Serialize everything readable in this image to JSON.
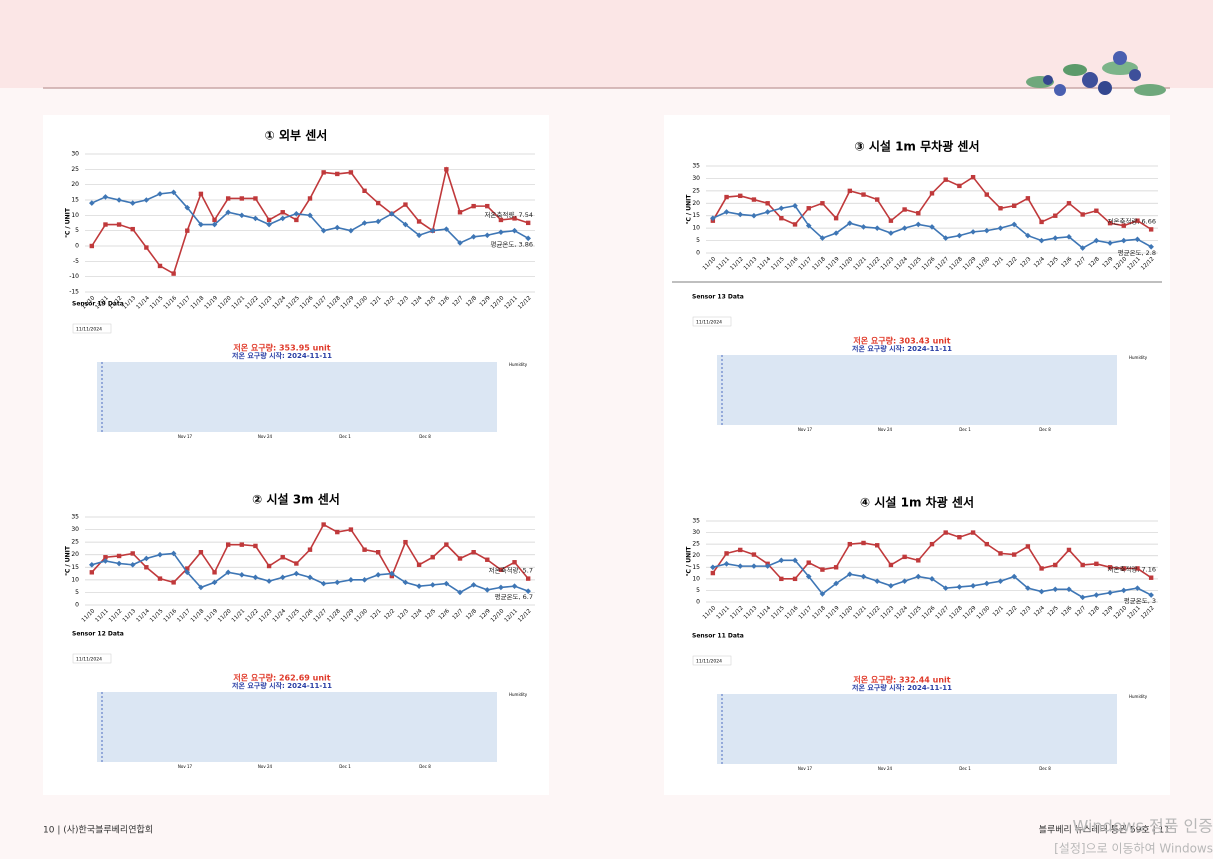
{
  "chart_data": [
    {
      "type": "line",
      "title": "① 외부 센서",
      "ylabel": "℃ / UNIT",
      "categories": [
        "11/10",
        "11/11",
        "11/12",
        "11/13",
        "11/14",
        "11/15",
        "11/16",
        "11/17",
        "11/18",
        "11/19",
        "11/20",
        "11/21",
        "11/22",
        "11/23",
        "11/24",
        "11/25",
        "11/26",
        "11/27",
        "11/28",
        "11/29",
        "11/30",
        "12/1",
        "12/2",
        "12/3",
        "12/4",
        "12/5",
        "12/6",
        "12/7",
        "12/8",
        "12/9",
        "12/10",
        "12/11",
        "12/12"
      ],
      "series": [
        {
          "color": "#c0393b",
          "marker": "square",
          "values": [
            0,
            7,
            7,
            5.5,
            -0.5,
            -6.5,
            -9,
            5,
            17,
            8.5,
            15.5,
            15.5,
            15.5,
            8.5,
            11,
            8.5,
            15.5,
            24,
            23.5,
            24,
            18,
            14,
            10.5,
            13.5,
            8,
            5,
            25,
            11,
            13,
            13,
            8.5,
            9,
            7.54
          ]
        },
        {
          "color": "#3e76b5",
          "marker": "diamond",
          "values": [
            14,
            16,
            15,
            14,
            15,
            17,
            17.5,
            12.5,
            7,
            7,
            11,
            10,
            9,
            7,
            9,
            10.5,
            10,
            5,
            6,
            5,
            7.5,
            8,
            10.5,
            7,
            3.5,
            5,
            5.5,
            1,
            3,
            3.5,
            4.5,
            5,
            2.5
          ]
        }
      ],
      "annotations": [
        "저온축적량, 7.54",
        "평균온도, 3.86"
      ],
      "ylim": [
        -15,
        30
      ],
      "yticks": [
        -15,
        -10,
        -5,
        0,
        5,
        10,
        15,
        20,
        25,
        30
      ],
      "grid": true
    },
    {
      "type": "line",
      "title": "② 시설 3m 센서",
      "ylabel": "℃ / UNIT",
      "categories": [
        "11/10",
        "11/11",
        "11/12",
        "11/13",
        "11/14",
        "11/15",
        "11/16",
        "11/17",
        "11/18",
        "11/19",
        "11/20",
        "11/21",
        "11/22",
        "11/23",
        "11/24",
        "11/25",
        "11/26",
        "11/27",
        "11/28",
        "11/29",
        "11/30",
        "12/1",
        "12/2",
        "12/3",
        "12/4",
        "12/5",
        "12/6",
        "12/7",
        "12/8",
        "12/9",
        "12/10",
        "12/11",
        "12/12"
      ],
      "series": [
        {
          "color": "#c0393b",
          "marker": "square",
          "values": [
            13,
            19,
            19.5,
            20.5,
            15,
            10.5,
            9,
            14.5,
            21,
            13,
            24,
            24,
            23.5,
            15.5,
            19,
            16.5,
            22,
            32,
            29,
            30,
            22,
            21,
            11.5,
            25,
            16,
            19,
            24,
            18.5,
            21,
            18,
            14,
            17,
            10.5
          ]
        },
        {
          "color": "#3e76b5",
          "marker": "diamond",
          "values": [
            16,
            17.5,
            16.5,
            16,
            18.5,
            20,
            20.5,
            13,
            7,
            9,
            13,
            12,
            11,
            9.5,
            11,
            12.5,
            11,
            8.5,
            9,
            10,
            10,
            12,
            12.5,
            9,
            7.5,
            8,
            8.5,
            5,
            8,
            6,
            7,
            7.5,
            5.5
          ]
        }
      ],
      "annotations": [
        "저온축적량, 5.7",
        "평균온도, 6.7"
      ],
      "ylim": [
        0,
        35
      ],
      "yticks": [
        0,
        5,
        10,
        15,
        20,
        25,
        30,
        35
      ],
      "grid": true
    },
    {
      "type": "line",
      "title": "③ 시설 1m 무차광 센서",
      "ylabel": "℃ / UNIT",
      "categories": [
        "11/10",
        "11/11",
        "11/12",
        "11/13",
        "11/14",
        "11/15",
        "11/16",
        "11/17",
        "11/18",
        "11/19",
        "11/20",
        "11/21",
        "11/22",
        "11/23",
        "11/24",
        "11/25",
        "11/26",
        "11/27",
        "11/28",
        "11/29",
        "11/30",
        "12/1",
        "12/2",
        "12/3",
        "12/4",
        "12/5",
        "12/6",
        "12/7",
        "12/8",
        "12/9",
        "12/10",
        "12/11",
        "12/12"
      ],
      "series": [
        {
          "color": "#c0393b",
          "marker": "square",
          "values": [
            13,
            22.5,
            23,
            21.5,
            20,
            14,
            11.5,
            18,
            20,
            14,
            25,
            23.5,
            21.5,
            13,
            17.5,
            16,
            24,
            29.5,
            27,
            30.5,
            23.5,
            18,
            19,
            22,
            12.5,
            15,
            20,
            15.5,
            17,
            12,
            11,
            13,
            9.5
          ]
        },
        {
          "color": "#3e76b5",
          "marker": "diamond",
          "values": [
            14,
            16.5,
            15.5,
            15,
            16.5,
            18,
            19,
            11,
            6,
            8,
            12,
            10.5,
            10,
            8,
            10,
            11.5,
            10.5,
            6,
            7,
            8.5,
            9,
            10,
            11.5,
            7,
            5,
            6,
            6.5,
            2,
            5,
            4,
            5,
            5.5,
            2.5
          ]
        }
      ],
      "annotations": [
        "저온축적량, 6.66",
        "평균온도, 2.8"
      ],
      "ylim": [
        0,
        35
      ],
      "yticks": [
        0,
        5,
        10,
        15,
        20,
        25,
        30,
        35
      ],
      "grid": true
    },
    {
      "type": "line",
      "title": "④ 시설 1m 차광 센서",
      "ylabel": "℃ / UNIT",
      "categories": [
        "11/10",
        "11/11",
        "11/12",
        "11/13",
        "11/14",
        "11/15",
        "11/16",
        "11/17",
        "11/18",
        "11/19",
        "11/20",
        "11/21",
        "11/22",
        "11/23",
        "11/24",
        "11/25",
        "11/26",
        "11/27",
        "11/28",
        "11/29",
        "11/30",
        "12/1",
        "12/2",
        "12/3",
        "12/4",
        "12/5",
        "12/6",
        "12/7",
        "12/8",
        "12/9",
        "12/10",
        "12/11",
        "12/12"
      ],
      "series": [
        {
          "color": "#c0393b",
          "marker": "square",
          "values": [
            12.5,
            21,
            22.5,
            20.5,
            16.5,
            10,
            10,
            17,
            14,
            15,
            25,
            25.5,
            24.5,
            16,
            19.5,
            18,
            25,
            30,
            28,
            30,
            25,
            21,
            20.5,
            24,
            14.5,
            16,
            22.5,
            16,
            16.5,
            15,
            14.5,
            14.5,
            10.5
          ]
        },
        {
          "color": "#3e76b5",
          "marker": "diamond",
          "values": [
            15,
            16.5,
            15.5,
            15.5,
            15.5,
            18,
            18,
            11,
            3.5,
            8,
            12,
            11,
            9,
            7,
            9,
            11,
            10,
            6,
            6.5,
            7,
            8,
            9,
            11,
            6,
            4.5,
            5.5,
            5.5,
            2,
            3,
            4,
            5,
            6,
            3
          ]
        }
      ],
      "annotations": [
        "저온축적량, 7.16",
        "평균온도, 3"
      ],
      "ylim": [
        0,
        35
      ],
      "yticks": [
        0,
        5,
        10,
        15,
        20,
        25,
        30,
        35
      ],
      "grid": true
    }
  ],
  "sensor_panels": [
    {
      "title": "Sensor 19 Data",
      "date": "11/11/2024",
      "chill": "저온 요구량: 353.95 unit",
      "start": "저온 요구량 시작: 2024-11-11",
      "xticks": [
        "Nov 17",
        "Nov 24",
        "Dec 1",
        "Dec 8"
      ],
      "legend": "Humidity"
    },
    {
      "title": "Sensor 12 Data",
      "date": "11/11/2024",
      "chill": "저온 요구량: 262.69 unit",
      "start": "저온 요구량 시작: 2024-11-11",
      "xticks": [
        "Nov 17",
        "Nov 24",
        "Dec 1",
        "Dec 8"
      ],
      "legend": "Humidity"
    },
    {
      "title": "Sensor 13 Data",
      "date": "11/11/2024",
      "chill": "저온 요구량: 303.43 unit",
      "start": "저온 요구량 시작: 2024-11-11",
      "xticks": [
        "Nov 17",
        "Nov 24",
        "Dec 1",
        "Dec 8"
      ],
      "legend": "Humidity"
    },
    {
      "title": "Sensor 11 Data",
      "date": "11/11/2024",
      "chill": "저온 요구량: 332.44 unit",
      "start": "저온 요구량 시작: 2024-11-11",
      "xticks": [
        "Nov 17",
        "Nov 24",
        "Dec 1",
        "Dec 8"
      ],
      "legend": "Humidity"
    }
  ],
  "footer": {
    "left": "10  |  (사)한국블루베리연합회",
    "right": "블루베리 뉴스레터 통권 59호  |  11"
  },
  "watermark": [
    "Windows 정품 인증",
    "[설정]으로 이동하여 Windows"
  ]
}
